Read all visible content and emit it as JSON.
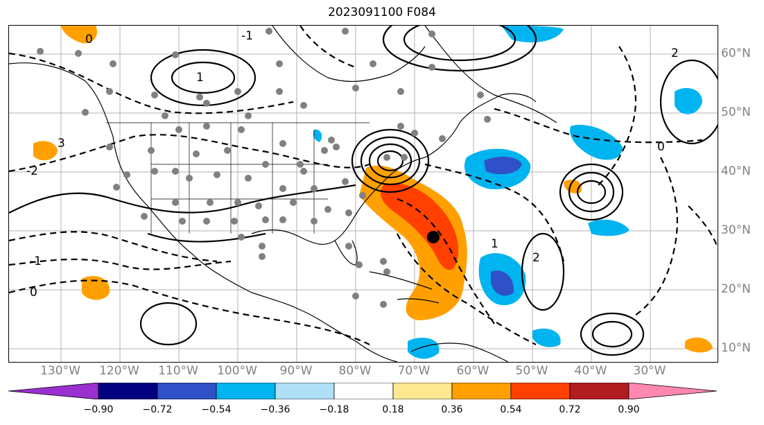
{
  "title": "2023091100 F084",
  "longitude_labels": [
    "130°W",
    "120°W",
    "110°W",
    "100°W",
    "90°W",
    "80°W",
    "70°W",
    "60°W",
    "50°W",
    "40°W",
    "30°W"
  ],
  "latitude_labels": [
    "60°N",
    "50°N",
    "40°N",
    "30°N",
    "20°N",
    "10°N"
  ],
  "contour_labels": [
    "-1",
    "0",
    "1",
    "2",
    "3",
    "-2",
    "0",
    "1",
    "2",
    "0",
    "-1"
  ],
  "colorbar": {
    "tick_labels": [
      "−0.90",
      "−0.72",
      "−0.54",
      "−0.36",
      "−0.18",
      "0.18",
      "0.36",
      "0.54",
      "0.72",
      "0.90"
    ],
    "colors": [
      "#9b30d0",
      "#000080",
      "#3050c8",
      "#00b4f0",
      "#b0e0f8",
      "#ffffff",
      "#ffe890",
      "#ffa000",
      "#ff4000",
      "#b01c20",
      "#ff88b0"
    ]
  },
  "colors": {
    "positive_anomaly": "#ffa000",
    "strong_positive": "#ff4000",
    "negative_anomaly": "#00b4f0",
    "strong_negative": "#3050c8",
    "station_dot": "#808080",
    "storm_center": "#000000"
  }
}
